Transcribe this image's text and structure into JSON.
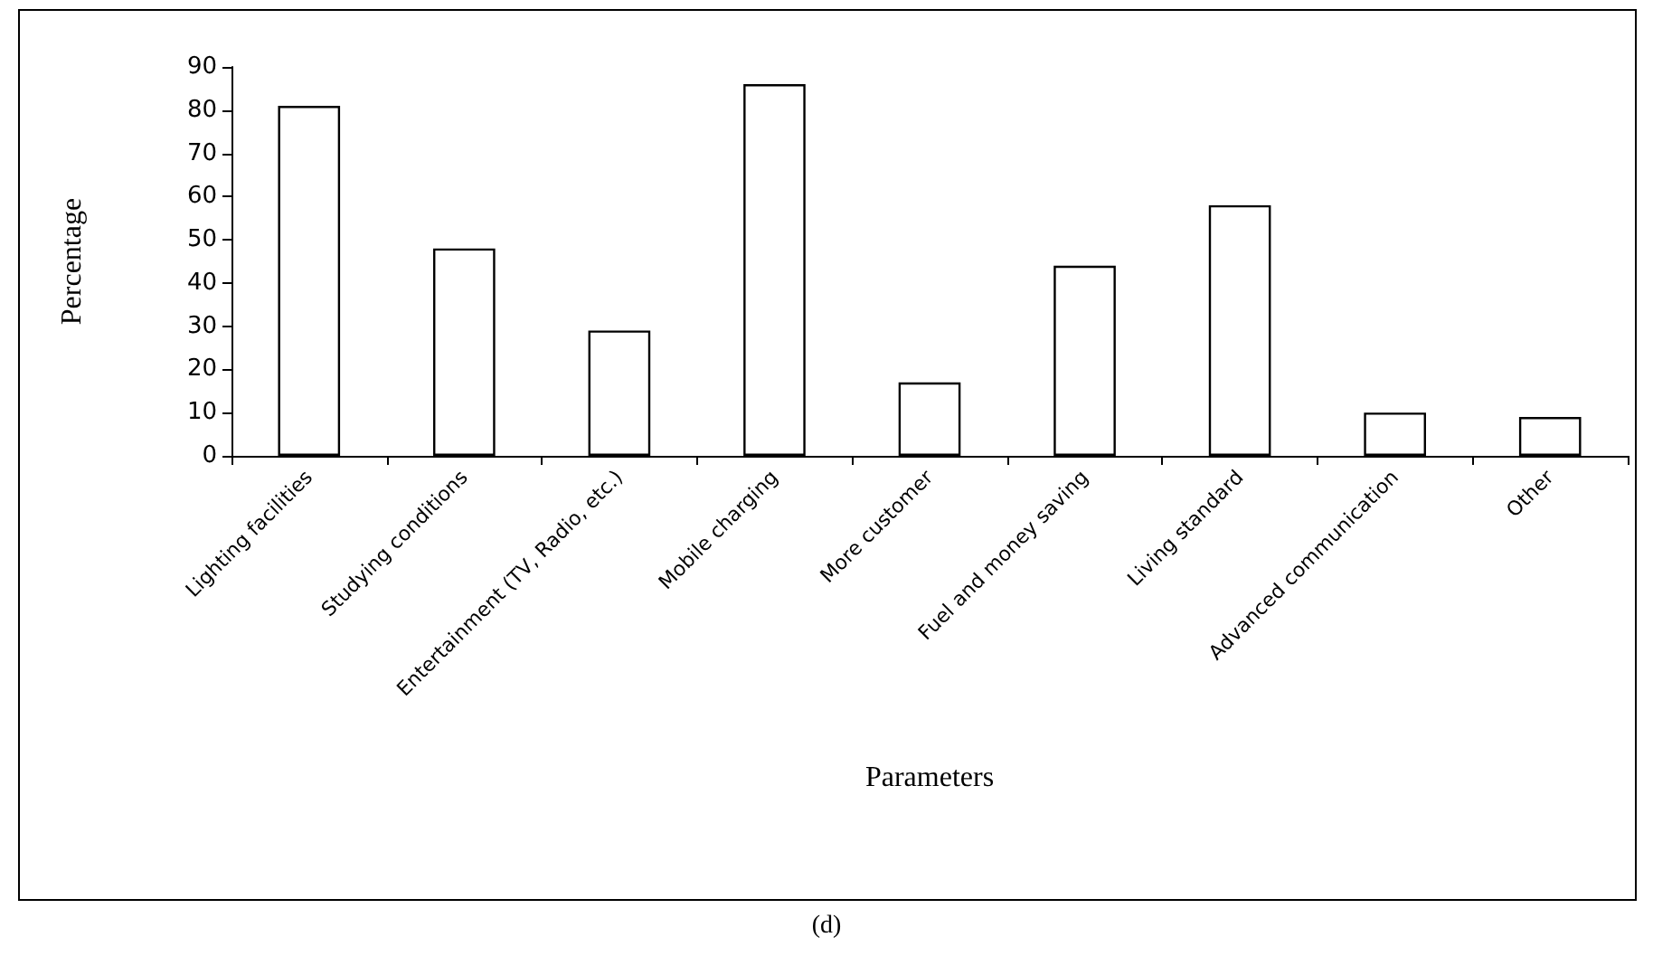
{
  "chart_data": {
    "type": "bar",
    "categories": [
      "Lighting facilities",
      "Studying conditions",
      "Entertainment (TV, Radio, etc.)",
      "Mobile charging",
      "More customer",
      "Fuel and money saving",
      "Living standard",
      "Advanced communication",
      "Other"
    ],
    "values": [
      81,
      48,
      29,
      86,
      17,
      44,
      58,
      10,
      9
    ],
    "color": "#ffffff",
    "xlabel": "Parameters",
    "ylabel": "Percentage",
    "ylim": [
      0,
      90
    ],
    "yticks": [
      0,
      10,
      20,
      30,
      40,
      50,
      60,
      70,
      80,
      90
    ],
    "grid": false,
    "annotations": [
      "(d)"
    ]
  }
}
